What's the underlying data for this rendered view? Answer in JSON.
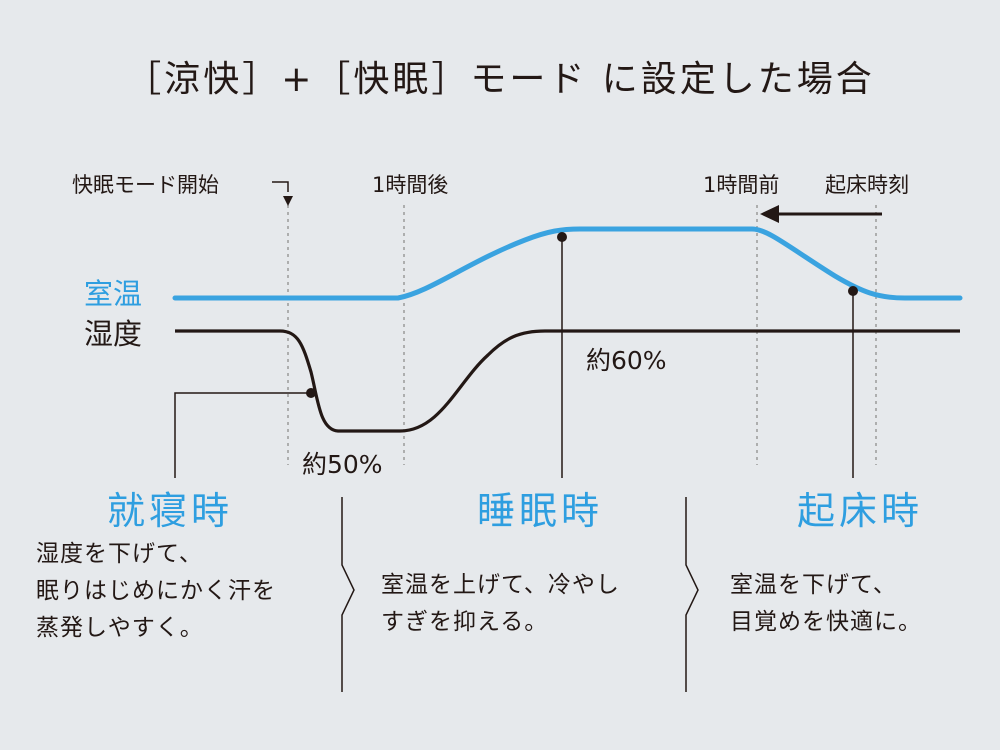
{
  "title": "［涼快］+［快眠］モード に設定した場合",
  "colors": {
    "background": "#e6e9ec",
    "room_temp_line": "#3aa3e0",
    "humidity_line": "#231815",
    "accent_text": "#2e9ee0",
    "guide_line": "#9a9a9a"
  },
  "markers": {
    "sleep_mode_start": "快眠モード開始",
    "one_hour_after": "1時間後",
    "one_hour_before": "1時間前",
    "wake_time": "起床時刻"
  },
  "series": {
    "room_temp_label": "室温",
    "humidity_label": "湿度"
  },
  "annotations": {
    "humidity_low": "約50%",
    "humidity_high": "約60%"
  },
  "phases": [
    {
      "title": "就寝時",
      "lines": [
        "湿度を下げて、",
        "眠りはじめにかく汗を",
        "蒸発しやすく。"
      ]
    },
    {
      "title": "睡眠時",
      "lines": [
        "室温を上げて、冷やし",
        "すぎを抑える。"
      ]
    },
    {
      "title": "起床時",
      "lines": [
        "室温を下げて、",
        "目覚めを快適に。"
      ]
    }
  ]
}
